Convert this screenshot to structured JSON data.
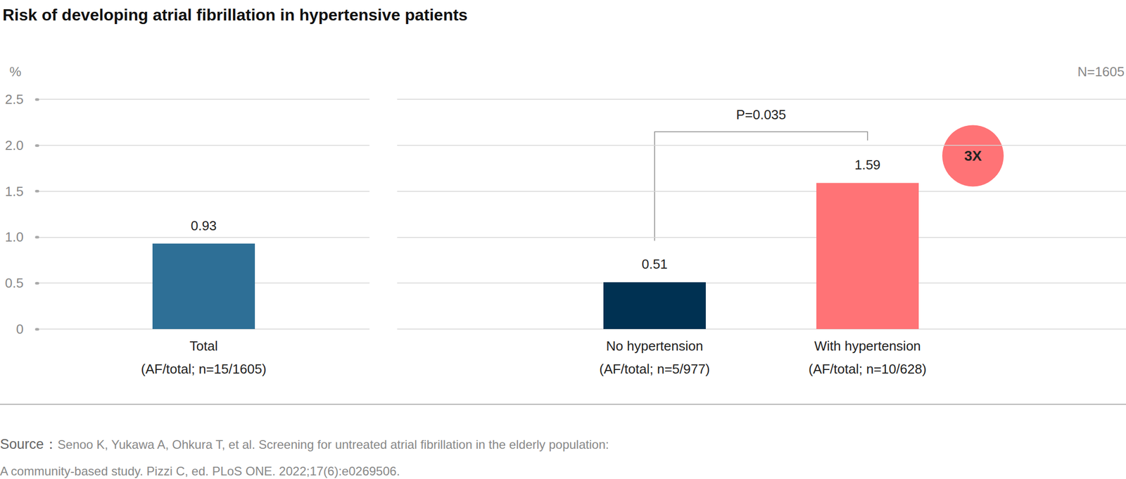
{
  "title": "Risk of developing atrial fibrillation in hypertensive patients",
  "unit": "%",
  "note": "N=1605",
  "source_label": "Source：",
  "source": [
    "Senoo K, Yukawa A, Ohkura T, et al. Screening for untreated atrial fibrillation in the elderly population:",
    "A community-based study. Pizzi C, ed. PLoS ONE. 2022;17(6):e0269506."
  ],
  "chart_data": [
    {
      "type": "bar",
      "categories": [
        "Total"
      ],
      "category_notes": [
        "(AF/total; n=15/1605)"
      ],
      "values": [
        0.93
      ],
      "colors": [
        "#2e6f96"
      ],
      "ylim": [
        0,
        2.5
      ],
      "yticks": [
        0,
        0.5,
        {
          "value": 1,
          "label": "1.0"
        },
        1.5,
        {
          "value": 2,
          "label": "2.0"
        },
        2.5
      ],
      "grid": true,
      "data_labels": true
    },
    {
      "type": "bar",
      "categories": [
        "No hypertension",
        "With hypertension"
      ],
      "category_notes": [
        "(AF/total; n=5/977)",
        "(AF/total; n=10/628)"
      ],
      "values": [
        0.51,
        1.59
      ],
      "colors": [
        "#003152",
        "#ff7376"
      ],
      "ylim": [
        0,
        2.5
      ],
      "yticks": [
        0,
        0.5,
        {
          "value": 1,
          "label": "1.0"
        },
        1.5,
        {
          "value": 2,
          "label": "2.0"
        },
        2.5
      ],
      "grid": true,
      "data_labels": true,
      "tick_labels": "x",
      "annotations": [
        {
          "text": "P=0.035",
          "between": [
            0,
            1
          ]
        },
        {
          "text": "3X",
          "at": 1,
          "color": "#ff7376"
        }
      ]
    }
  ]
}
